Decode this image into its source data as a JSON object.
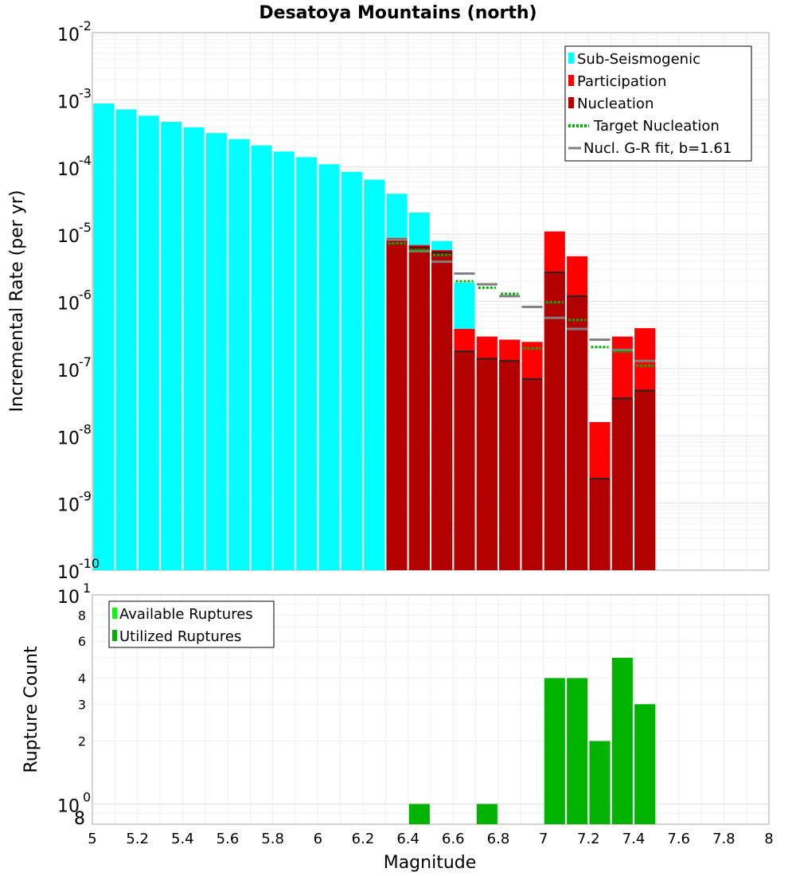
{
  "chart_data": [
    {
      "type": "bar",
      "title": "Desatoya Mountains (north)",
      "ylabel": "Incremental Rate (per yr)",
      "yscale": "log",
      "ylim": [
        1e-10,
        0.01
      ],
      "xlim": [
        5,
        8
      ],
      "ytick_bases": [
        "10",
        "10",
        "10",
        "10",
        "10",
        "10",
        "10",
        "10",
        "10"
      ],
      "ytick_exponents": [
        "-2",
        "-3",
        "-4",
        "-5",
        "-6",
        "-7",
        "-8",
        "-9",
        "-10"
      ],
      "ytick_values": [
        0.01,
        0.001,
        0.0001,
        1e-05,
        1e-06,
        1e-07,
        1e-08,
        1e-09,
        1e-10
      ],
      "legend_position": "top-right",
      "legend": [
        {
          "label": "Sub-Seismogenic",
          "color": "#00ffff",
          "style": "box"
        },
        {
          "label": "Participation",
          "color": "#ff0000",
          "style": "box"
        },
        {
          "label": "Nucleation",
          "color": "#b30000",
          "style": "box"
        },
        {
          "label": "Target Nucleation",
          "color": "#00b300",
          "style": "dotted"
        },
        {
          "label": "Nucl. G-R fit, b=1.61",
          "color": "#808080",
          "style": "line"
        }
      ],
      "series": [
        {
          "name": "Sub-Seismogenic",
          "color": "#00ffff",
          "x": [
            5.05,
            5.15,
            5.25,
            5.35,
            5.45,
            5.55,
            5.65,
            5.75,
            5.85,
            5.95,
            6.05,
            6.15,
            6.25,
            6.35,
            6.45,
            6.55,
            6.65
          ],
          "values": [
            0.00088,
            0.00072,
            0.00058,
            0.00047,
            0.00039,
            0.00032,
            0.00026,
            0.00021,
            0.00017,
            0.00014,
            0.00011,
            8.5e-05,
            6.5e-05,
            4e-05,
            2.1e-05,
            7.9e-06,
            1.9e-06
          ]
        },
        {
          "name": "Participation",
          "color": "#ff0000",
          "x": [
            6.35,
            6.45,
            6.55,
            6.65,
            6.75,
            6.85,
            6.95,
            7.05,
            7.15,
            7.25,
            7.35,
            7.45
          ],
          "values": [
            8.8e-06,
            6.9e-06,
            5.8e-06,
            3.9e-07,
            3e-07,
            2.7e-07,
            2.5e-07,
            1.1e-05,
            4.7e-06,
            1.6e-08,
            3e-07,
            4e-07
          ]
        },
        {
          "name": "Nucleation",
          "color": "#b30000",
          "x": [
            6.35,
            6.45,
            6.55,
            6.65,
            6.75,
            6.85,
            6.95,
            7.05,
            7.15,
            7.25,
            7.35,
            7.45
          ],
          "values": [
            8.2e-06,
            6.4e-06,
            5.4e-06,
            1.8e-07,
            1.4e-07,
            1.3e-07,
            7e-08,
            2.7e-06,
            1.2e-06,
            2.3e-09,
            3.6e-08,
            4.7e-08
          ]
        },
        {
          "name": "Target Nucleation",
          "color": "#00b300",
          "x": [
            6.35,
            6.45,
            6.55,
            6.65,
            6.75,
            6.85,
            6.95,
            7.05,
            7.15,
            7.25,
            7.35,
            7.45
          ],
          "values": [
            7.3e-06,
            5.8e-06,
            4.9e-06,
            2e-06,
            1.6e-06,
            1.3e-06,
            2e-07,
            9.7e-07,
            5.3e-07,
            2.1e-07,
            1.8e-07,
            1.1e-07
          ]
        },
        {
          "name": "Nucl. G-R fit, b=1.61",
          "color": "#808080",
          "x": [
            6.35,
            6.45,
            6.55,
            6.65,
            6.75,
            6.85,
            6.95,
            7.05,
            7.15,
            7.25,
            7.35,
            7.45
          ],
          "values": [
            8.3e-06,
            5.6e-06,
            3.9e-06,
            2.6e-06,
            1.8e-06,
            1.2e-06,
            8.3e-07,
            5.7e-07,
            3.9e-07,
            2.7e-07,
            1.9e-07,
            1.3e-07
          ]
        }
      ]
    },
    {
      "type": "bar",
      "ylabel": "Rupture Count",
      "xlabel": "Magnitude",
      "yscale": "log",
      "ylim": [
        0.8,
        10
      ],
      "xlim": [
        5,
        8
      ],
      "x_ticks": [
        "5",
        "5.2",
        "5.4",
        "5.6",
        "5.8",
        "6",
        "6.2",
        "6.4",
        "6.6",
        "6.8",
        "7",
        "7.2",
        "7.4",
        "7.6",
        "7.8",
        "8"
      ],
      "y_major_ticks": [
        {
          "base": "10",
          "exp": "1",
          "value": 10
        },
        {
          "base": "10",
          "exp": "0",
          "value": 1
        }
      ],
      "y_minor_ticks": [
        {
          "label": "8",
          "value": 8
        },
        {
          "label": "6",
          "value": 6
        },
        {
          "label": "4",
          "value": 4
        },
        {
          "label": "3",
          "value": 3
        },
        {
          "label": "2",
          "value": 2
        },
        {
          "label": "8",
          "value": 0.8
        }
      ],
      "legend_position": "top-left",
      "legend": [
        {
          "label": "Available Ruptures",
          "color": "#00ff00"
        },
        {
          "label": "Utilized Ruptures",
          "color": "#00b300"
        }
      ],
      "series": [
        {
          "name": "Utilized Ruptures",
          "color": "#00b300",
          "x": [
            6.45,
            6.75,
            7.05,
            7.15,
            7.25,
            7.35,
            7.45
          ],
          "values": [
            1,
            1,
            4,
            4,
            2,
            5,
            3
          ]
        }
      ]
    }
  ]
}
